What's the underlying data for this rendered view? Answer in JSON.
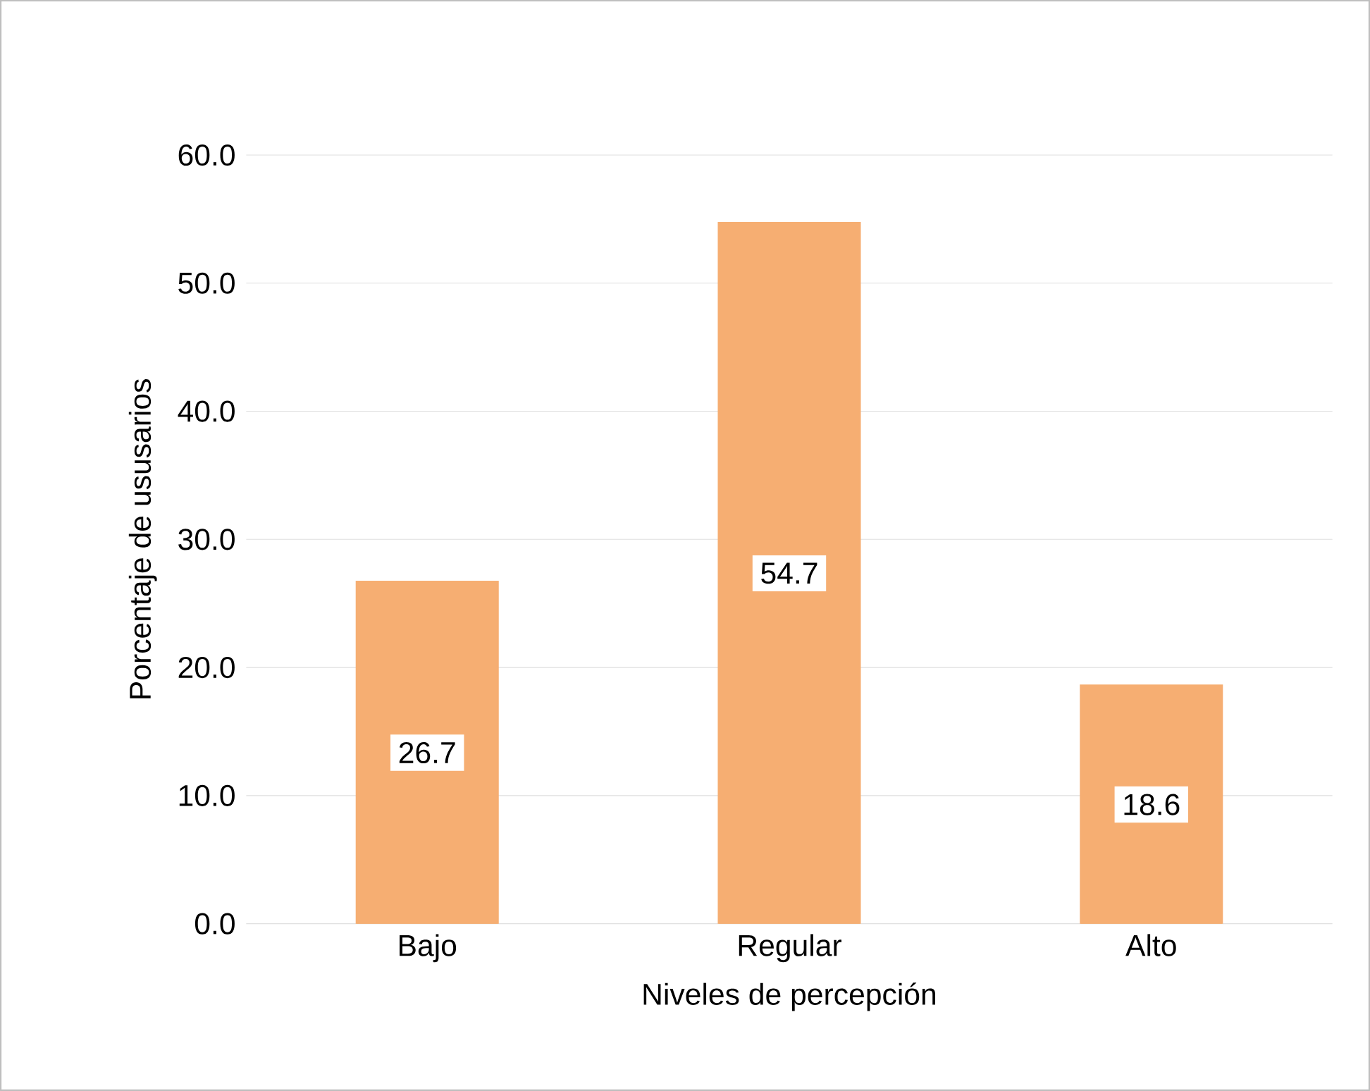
{
  "chart_data": {
    "type": "bar",
    "categories": [
      "Bajo",
      "Regular",
      "Alto"
    ],
    "values": [
      26.7,
      54.7,
      18.6
    ],
    "color": "#f6ae72",
    "xlabel": "Niveles de percepción",
    "ylabel": "Porcentaje de ususarios",
    "ylim": [
      0,
      60
    ],
    "yticks": [
      {
        "value": 0,
        "label": "0.0"
      },
      {
        "value": 10,
        "label": "10.0"
      },
      {
        "value": 20,
        "label": "20.0"
      },
      {
        "value": 30,
        "label": "30.0"
      },
      {
        "value": 40,
        "label": "40.0"
      },
      {
        "value": 50,
        "label": "50.0"
      },
      {
        "value": 60,
        "label": "60.0"
      }
    ],
    "grid": "y",
    "data_labels": true
  }
}
